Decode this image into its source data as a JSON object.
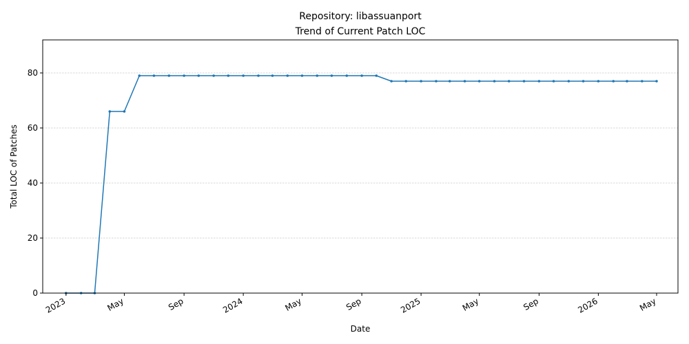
{
  "chart_data": {
    "type": "line",
    "title_line1": "Repository: libassuanport",
    "title_line2": "Trend of Current Patch LOC",
    "xlabel": "Date",
    "ylabel": "Total LOC of Patches",
    "ylim": [
      0,
      92
    ],
    "xlim": [
      "2022-11-14",
      "2026-06-14"
    ],
    "y_ticks": [
      0,
      20,
      40,
      60,
      80
    ],
    "x_ticks": [
      {
        "date": "2023-01-01",
        "label": "2023"
      },
      {
        "date": "2023-05-01",
        "label": "May"
      },
      {
        "date": "2023-09-01",
        "label": "Sep"
      },
      {
        "date": "2024-01-01",
        "label": "2024"
      },
      {
        "date": "2024-05-01",
        "label": "May"
      },
      {
        "date": "2024-09-01",
        "label": "Sep"
      },
      {
        "date": "2025-01-01",
        "label": "2025"
      },
      {
        "date": "2025-05-01",
        "label": "May"
      },
      {
        "date": "2025-09-01",
        "label": "Sep"
      },
      {
        "date": "2026-01-01",
        "label": "2026"
      },
      {
        "date": "2026-05-01",
        "label": "May"
      }
    ],
    "grid": "horizontal dashed",
    "line_color": "#1f77b4",
    "series": [
      {
        "x": [
          "2023-01-01",
          "2023-02-01",
          "2023-03-01",
          "2023-04-01",
          "2023-05-01",
          "2023-06-01",
          "2023-07-01",
          "2023-08-01",
          "2023-09-01",
          "2023-10-01",
          "2023-11-01",
          "2023-12-01",
          "2024-01-01",
          "2024-02-01",
          "2024-03-01",
          "2024-04-01",
          "2024-05-01",
          "2024-06-01",
          "2024-07-01",
          "2024-08-01",
          "2024-09-01",
          "2024-10-01",
          "2024-11-01",
          "2024-12-01",
          "2025-01-01",
          "2025-02-01",
          "2025-03-01",
          "2025-04-01",
          "2025-05-01",
          "2025-06-01",
          "2025-07-01",
          "2025-08-01",
          "2025-09-01",
          "2025-10-01",
          "2025-11-01",
          "2025-12-01",
          "2026-01-01",
          "2026-02-01",
          "2026-03-01",
          "2026-04-01",
          "2026-05-01"
        ],
        "values": [
          0,
          0,
          0,
          66,
          66,
          79,
          79,
          79,
          79,
          79,
          79,
          79,
          79,
          79,
          79,
          79,
          79,
          79,
          79,
          79,
          79,
          79,
          77,
          77,
          77,
          77,
          77,
          77,
          77,
          77,
          77,
          77,
          77,
          77,
          77,
          77,
          77,
          77,
          77,
          77,
          77
        ]
      }
    ]
  }
}
